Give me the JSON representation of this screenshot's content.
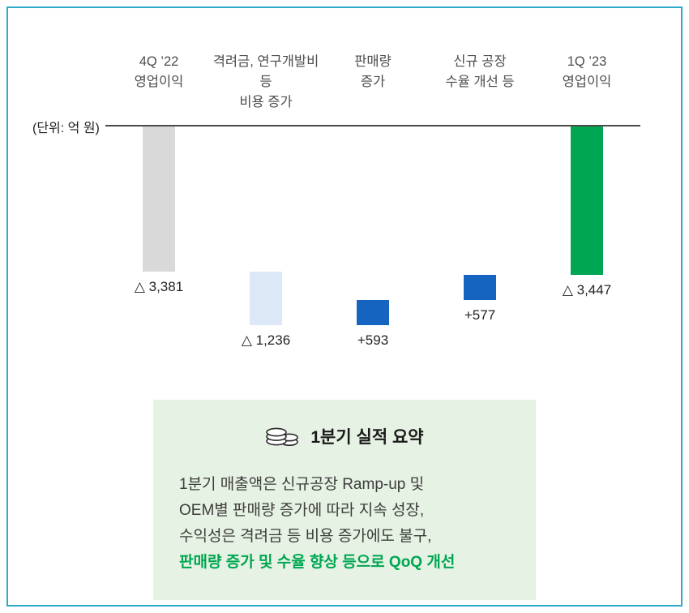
{
  "chart_data": {
    "type": "waterfall",
    "title": "",
    "unit_label": "(단위: 억 원)",
    "baseline_value": 0,
    "categories": [
      "4Q ’22 영업이익",
      "격려금, 연구개발비 등 비용 증가",
      "판매량 증가",
      "신규 공장 수율 개선 등",
      "1Q ’23 영업이익"
    ],
    "bars": [
      {
        "label_lines": [
          "4Q ’22",
          "영업이익"
        ],
        "value": -3381,
        "display": "△ 3,381",
        "kind": "total",
        "color": "#D9D9D9"
      },
      {
        "label_lines": [
          "격려금, 연구개발비 등",
          "비용 증가"
        ],
        "value": -1236,
        "display": "△ 1,236",
        "kind": "delta",
        "color": "#DCE8F5"
      },
      {
        "label_lines": [
          "판매량",
          "증가"
        ],
        "value": 593,
        "display": "+593",
        "kind": "delta",
        "color": "#1565C0"
      },
      {
        "label_lines": [
          "신규 공장",
          "수율 개선 등"
        ],
        "value": 577,
        "display": "+577",
        "kind": "delta",
        "color": "#1565C0"
      },
      {
        "label_lines": [
          "1Q ’23",
          "영업이익"
        ],
        "value": -3447,
        "display": "△ 3,447",
        "kind": "total",
        "color": "#00A651"
      }
    ]
  },
  "summary": {
    "icon": "coins-icon",
    "title": "1분기 실적 요약",
    "lines": [
      "1분기 매출액은 신규공장 Ramp-up 및",
      "OEM별 판매량 증가에 따라 지속 성장,",
      "수익성은 격려금 등 비용 증가에도 불구,"
    ],
    "highlight_line": "판매량 증가 및 수율 향상 등으로 QoQ 개선",
    "background": "#E6F2E3",
    "highlight_color": "#00A651"
  },
  "colors": {
    "frame_border": "#2EA9C9",
    "baseline": "#4a4a4a",
    "header_text": "#4d4d4d",
    "bar_gray": "#D9D9D9",
    "bar_light_blue": "#DCE8F5",
    "bar_blue": "#1565C0",
    "bar_green": "#00A651"
  }
}
